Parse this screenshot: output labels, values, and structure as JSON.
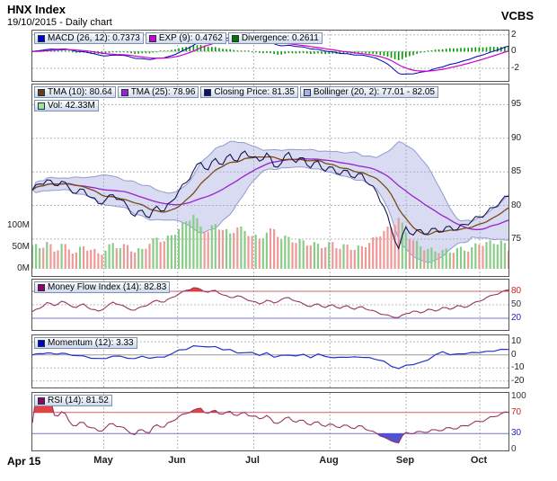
{
  "header": {
    "title": "HNX Index",
    "subtitle": "19/10/2015 - Daily chart",
    "brand": "VCBS"
  },
  "legends": {
    "macd": [
      {
        "swatch": "#0000cc",
        "label": "MACD (26, 12): 0.7373"
      },
      {
        "swatch": "#cc00cc",
        "label": "EXP (9): 0.4762"
      },
      {
        "swatch": "#007700",
        "label": "Divergence: 0.2611"
      }
    ],
    "main_row1": [
      {
        "swatch": "#6b3a10",
        "label": "TMA (10): 80.64"
      },
      {
        "swatch": "#9922cc",
        "label": "TMA (25): 78.96"
      },
      {
        "swatch": "#101060",
        "label": "Closing Price: 81.35"
      },
      {
        "swatch": "#aab0e6",
        "label": "Bollinger (20, 2): 77.01 - 82.05"
      }
    ],
    "main_row2": [
      {
        "swatch": "#99e699",
        "label": "Vol: 42.33M"
      }
    ],
    "mfi": [
      {
        "swatch": "#990066",
        "label": "Money Flow Index (14): 82.83"
      }
    ],
    "momentum": [
      {
        "swatch": "#0000cc",
        "label": "Momentum (12): 3.33"
      }
    ],
    "rsi": [
      {
        "swatch": "#990066",
        "label": "RSI (14): 81.52"
      }
    ]
  },
  "axes": {
    "macd_ticks": [
      2,
      0,
      -2
    ],
    "price_ticks": [
      95,
      90,
      85,
      80,
      75
    ],
    "volume_labels": [
      {
        "label": "100M",
        "v": 100
      },
      {
        "label": "50M",
        "v": 50
      },
      {
        "label": "0M",
        "v": 0
      }
    ],
    "mfi_ticks": [
      {
        "v": 80,
        "c": "#cc2222"
      },
      {
        "v": 50,
        "c": "#333333"
      },
      {
        "v": 20,
        "c": "#2222cc"
      }
    ],
    "momentum_ticks": [
      10,
      0,
      -10,
      -20
    ],
    "rsi_ticks": [
      {
        "v": 100,
        "c": "#333333"
      },
      {
        "v": 70,
        "c": "#cc2222"
      },
      {
        "v": 30,
        "c": "#2222cc"
      },
      {
        "v": 0,
        "c": "#333333"
      }
    ],
    "x_labels": [
      {
        "label": "Apr 15",
        "f": 0,
        "bold": true
      },
      {
        "label": "May",
        "f": 0.15
      },
      {
        "label": "Jun",
        "f": 0.305
      },
      {
        "label": "Jul",
        "f": 0.465
      },
      {
        "label": "Aug",
        "f": 0.625
      },
      {
        "label": "Sep",
        "f": 0.785
      },
      {
        "label": "Oct",
        "f": 0.94
      }
    ]
  },
  "chart_data": {
    "type": "line",
    "title": "HNX Index",
    "subtitle": "19/10/2015 - Daily chart",
    "x_range": [
      "Apr 15",
      "Oct 19"
    ],
    "panels": [
      {
        "name": "MACD",
        "y_ticks": [
          2,
          0,
          -2
        ],
        "series": [
          "MACD (26, 12) = 0.7373",
          "EXP (9) = 0.4762",
          "Divergence = 0.2611"
        ]
      },
      {
        "name": "Price",
        "y_ticks": [
          95,
          90,
          85,
          80,
          75
        ],
        "series": [
          "TMA (10) = 80.64",
          "TMA (25) = 78.96",
          "Closing Price = 81.35",
          "Bollinger (20, 2) = 77.01 - 82.05",
          "Vol = 42.33M"
        ],
        "volume_axis": [
          "100M",
          "50M",
          "0M"
        ]
      },
      {
        "name": "Money Flow Index (14)",
        "y_ticks": [
          80,
          50,
          20
        ],
        "last": 82.83
      },
      {
        "name": "Momentum (12)",
        "y_ticks": [
          10,
          0,
          -10,
          -20
        ],
        "last": 3.33
      },
      {
        "name": "RSI (14)",
        "y_ticks": [
          100,
          70,
          30,
          0
        ],
        "last": 81.52
      }
    ],
    "close": [
      82.3,
      83.2,
      83.8,
      83.0,
      83.6,
      82.6,
      81.8,
      82.4,
      81.2,
      80.3,
      80.8,
      81.6,
      80.9,
      79.8,
      78.4,
      79.3,
      78.2,
      79.9,
      79.2,
      80.6,
      82.2,
      83.4,
      85.2,
      86.4,
      85.3,
      87.0,
      86.1,
      87.6,
      86.6,
      88.1,
      87.2,
      86.6,
      87.8,
      85.8,
      86.3,
      87.9,
      86.4,
      87.1,
      85.6,
      86.6,
      85.1,
      85.7,
      84.6,
      85.2,
      84.1,
      84.7,
      83.1,
      82.0,
      79.8,
      76.5,
      73.6,
      76.8,
      75.6,
      76.4,
      75.8,
      76.6,
      76.1,
      76.9,
      76.4,
      77.2,
      77.7,
      78.3,
      78.9,
      79.7,
      80.7,
      81.35
    ],
    "volume_M": [
      55,
      48,
      62,
      40,
      58,
      45,
      38,
      52,
      44,
      36,
      42,
      60,
      48,
      55,
      38,
      46,
      58,
      72,
      64,
      78,
      92,
      110,
      125,
      98,
      86,
      104,
      90,
      82,
      96,
      88,
      76,
      70,
      84,
      92,
      68,
      74,
      60,
      66,
      54,
      58,
      50,
      62,
      46,
      56,
      44,
      52,
      60,
      74,
      88,
      96,
      118,
      84,
      66,
      52,
      46,
      40,
      44,
      38,
      48,
      42,
      50,
      56,
      62,
      58,
      66,
      42
    ],
    "mfi": [
      35,
      42,
      55,
      48,
      58,
      50,
      44,
      52,
      40,
      36,
      44,
      56,
      50,
      42,
      38,
      46,
      52,
      60,
      56,
      66,
      74,
      82,
      88,
      84,
      78,
      82,
      72,
      66,
      70,
      64,
      58,
      52,
      60,
      54,
      62,
      66,
      58,
      52,
      46,
      52,
      44,
      50,
      42,
      48,
      40,
      46,
      38,
      34,
      28,
      24,
      22,
      30,
      36,
      32,
      40,
      36,
      44,
      40,
      48,
      44,
      52,
      58,
      66,
      72,
      78,
      82.83
    ],
    "indicator_params": {
      "tma_fast": 10,
      "tma_slow": 25,
      "bollinger": [
        20,
        2
      ],
      "macd": [
        26,
        12,
        9
      ],
      "momentum": 12,
      "rsi": 14,
      "mfi": 14
    }
  },
  "colors": {
    "close": "#15154d",
    "tma10": "#7a4a16",
    "tma25": "#9922cc",
    "boll_fill": "#9aa0dd",
    "boll_line": "#8890cc",
    "vol_up": "#88cc88",
    "vol_down": "#ee9999",
    "macd": "#0000bb",
    "exp": "#cc00cc",
    "divergence": "#009900",
    "mfi": "#993366",
    "momentum": "#2233cc",
    "rsi": "#993366",
    "over": "#dd2222",
    "under": "#3333cc",
    "grid": "#b8b8b8",
    "level_red": "#cc6666",
    "level_blue": "#7777cc"
  }
}
